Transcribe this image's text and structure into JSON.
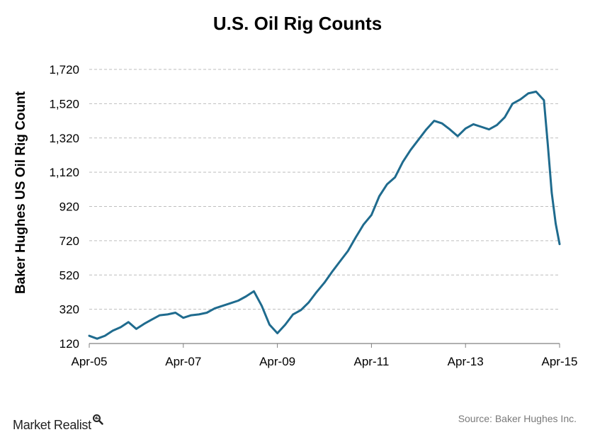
{
  "chart_data": {
    "type": "line",
    "title": "U.S. Oil Rig Counts",
    "ylabel": "Baker Hughes US Oil Rig Count",
    "xlabel": "",
    "ylim": [
      120,
      1720
    ],
    "y_ticks": [
      "1,720",
      "1,520",
      "1,320",
      "1,120",
      "920",
      "720",
      "520",
      "320",
      "120"
    ],
    "x_ticks": [
      "Apr-05",
      "Apr-07",
      "Apr-09",
      "Apr-11",
      "Apr-13",
      "Apr-15"
    ],
    "x_range": [
      "2005-04",
      "2015-04"
    ],
    "grid": "horizontal dashed",
    "series": [
      {
        "color": "#1f6b8e",
        "x": [
          "2005-04",
          "2005-06",
          "2005-08",
          "2005-10",
          "2005-12",
          "2006-02",
          "2006-04",
          "2006-06",
          "2006-08",
          "2006-10",
          "2006-12",
          "2007-02",
          "2007-04",
          "2007-06",
          "2007-08",
          "2007-10",
          "2007-12",
          "2008-02",
          "2008-04",
          "2008-06",
          "2008-08",
          "2008-10",
          "2008-12",
          "2009-02",
          "2009-04",
          "2009-06",
          "2009-08",
          "2009-10",
          "2009-12",
          "2010-02",
          "2010-04",
          "2010-06",
          "2010-08",
          "2010-10",
          "2010-12",
          "2011-02",
          "2011-04",
          "2011-06",
          "2011-08",
          "2011-10",
          "2011-12",
          "2012-02",
          "2012-04",
          "2012-06",
          "2012-08",
          "2012-10",
          "2012-12",
          "2013-02",
          "2013-04",
          "2013-06",
          "2013-08",
          "2013-10",
          "2013-12",
          "2014-02",
          "2014-04",
          "2014-06",
          "2014-08",
          "2014-10",
          "2014-12",
          "2015-01",
          "2015-02",
          "2015-03",
          "2015-04"
        ],
        "values": [
          165,
          148,
          165,
          195,
          215,
          245,
          205,
          235,
          260,
          285,
          290,
          300,
          270,
          285,
          290,
          300,
          325,
          340,
          355,
          370,
          395,
          425,
          340,
          230,
          180,
          230,
          290,
          315,
          360,
          420,
          475,
          540,
          600,
          660,
          740,
          815,
          870,
          980,
          1050,
          1090,
          1180,
          1250,
          1310,
          1370,
          1420,
          1405,
          1370,
          1330,
          1375,
          1400,
          1385,
          1370,
          1395,
          1440,
          1520,
          1545,
          1580,
          1590,
          1540,
          1280,
          1000,
          820,
          700
        ]
      }
    ]
  },
  "branding": {
    "name": "Market Realist",
    "icon": "magnifier-icon"
  },
  "source": "Source: Baker Hughes Inc."
}
